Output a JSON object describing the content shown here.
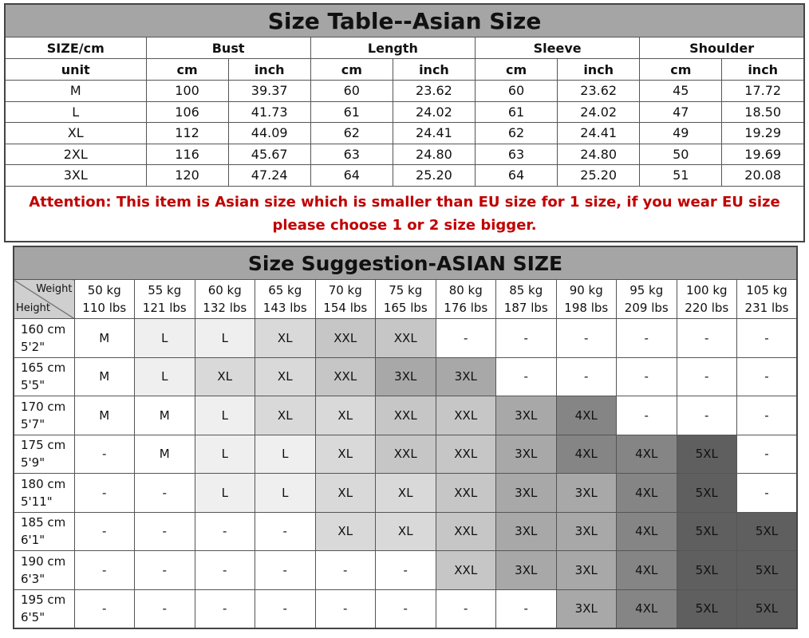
{
  "size_table": {
    "title": "Size Table--Asian Size",
    "header": [
      "SIZE/cm",
      "Bust",
      "Length",
      "Sleeve",
      "Shoulder"
    ],
    "units": [
      "unit",
      "cm",
      "inch",
      "cm",
      "inch",
      "cm",
      "inch",
      "cm",
      "inch"
    ],
    "rows": [
      [
        "M",
        "100",
        "39.37",
        "60",
        "23.62",
        "60",
        "23.62",
        "45",
        "17.72"
      ],
      [
        "L",
        "106",
        "41.73",
        "61",
        "24.02",
        "61",
        "24.02",
        "47",
        "18.50"
      ],
      [
        "XL",
        "112",
        "44.09",
        "62",
        "24.41",
        "62",
        "24.41",
        "49",
        "19.29"
      ],
      [
        "2XL",
        "116",
        "45.67",
        "63",
        "24.80",
        "63",
        "24.80",
        "50",
        "19.69"
      ],
      [
        "3XL",
        "120",
        "47.24",
        "64",
        "25.20",
        "64",
        "25.20",
        "51",
        "20.08"
      ]
    ],
    "attention": "Attention:  This item is Asian size which is smaller than EU size for 1 size, if you wear EU size please choose 1 or 2 size bigger."
  },
  "suggestion_table": {
    "title": "Size Suggestion-ASIAN SIZE",
    "corner_top": "Weight",
    "corner_bottom": "Height",
    "weights": [
      {
        "kg": "50 kg",
        "lbs": "110 lbs"
      },
      {
        "kg": "55 kg",
        "lbs": "121 lbs"
      },
      {
        "kg": "60 kg",
        "lbs": "132 lbs"
      },
      {
        "kg": "65 kg",
        "lbs": "143 lbs"
      },
      {
        "kg": "70 kg",
        "lbs": "154 lbs"
      },
      {
        "kg": "75 kg",
        "lbs": "165 lbs"
      },
      {
        "kg": "80 kg",
        "lbs": "176 lbs"
      },
      {
        "kg": "85 kg",
        "lbs": "187 lbs"
      },
      {
        "kg": "90 kg",
        "lbs": "198 lbs"
      },
      {
        "kg": "95 kg",
        "lbs": "209 lbs"
      },
      {
        "kg": "100 kg",
        "lbs": "220 lbs"
      },
      {
        "kg": "105 kg",
        "lbs": "231 lbs"
      }
    ],
    "rows": [
      {
        "cm": "160 cm",
        "ft": "5'2\"",
        "cells": [
          "M",
          "L",
          "L",
          "XL",
          "XXL",
          "XXL",
          "-",
          "-",
          "-",
          "-",
          "-",
          "-"
        ]
      },
      {
        "cm": "165 cm",
        "ft": "5'5\"",
        "cells": [
          "M",
          "L",
          "XL",
          "XL",
          "XXL",
          "3XL",
          "3XL",
          "-",
          "-",
          "-",
          "-",
          "-"
        ]
      },
      {
        "cm": "170 cm",
        "ft": "5'7\"",
        "cells": [
          "M",
          "M",
          "L",
          "XL",
          "XL",
          "XXL",
          "XXL",
          "3XL",
          "4XL",
          "-",
          "-",
          "-"
        ]
      },
      {
        "cm": "175 cm",
        "ft": "5'9\"",
        "cells": [
          "-",
          "M",
          "L",
          "L",
          "XL",
          "XXL",
          "XXL",
          "3XL",
          "4XL",
          "4XL",
          "5XL",
          "-"
        ]
      },
      {
        "cm": "180 cm",
        "ft": "5'11\"",
        "cells": [
          "-",
          "-",
          "L",
          "L",
          "XL",
          "XL",
          "XXL",
          "3XL",
          "3XL",
          "4XL",
          "5XL",
          "-"
        ]
      },
      {
        "cm": "185 cm",
        "ft": "6'1\"",
        "cells": [
          "-",
          "-",
          "-",
          "-",
          "XL",
          "XL",
          "XXL",
          "3XL",
          "3XL",
          "4XL",
          "5XL",
          "5XL"
        ]
      },
      {
        "cm": "190 cm",
        "ft": "6'3\"",
        "cells": [
          "-",
          "-",
          "-",
          "-",
          "-",
          "-",
          "XXL",
          "3XL",
          "3XL",
          "4XL",
          "5XL",
          "5XL"
        ]
      },
      {
        "cm": "195 cm",
        "ft": "6'5\"",
        "cells": [
          "-",
          "-",
          "-",
          "-",
          "-",
          "-",
          "-",
          "-",
          "3XL",
          "4XL",
          "5XL",
          "5XL"
        ]
      }
    ],
    "size_colors": {
      "-": "#ffffff",
      "M": "#ffffff",
      "L": "#efefef",
      "XL": "#d9d9d9",
      "XXL": "#c6c6c6",
      "3XL": "#a8a8a8",
      "4XL": "#858585",
      "5XL": "#5f5f5f"
    }
  }
}
